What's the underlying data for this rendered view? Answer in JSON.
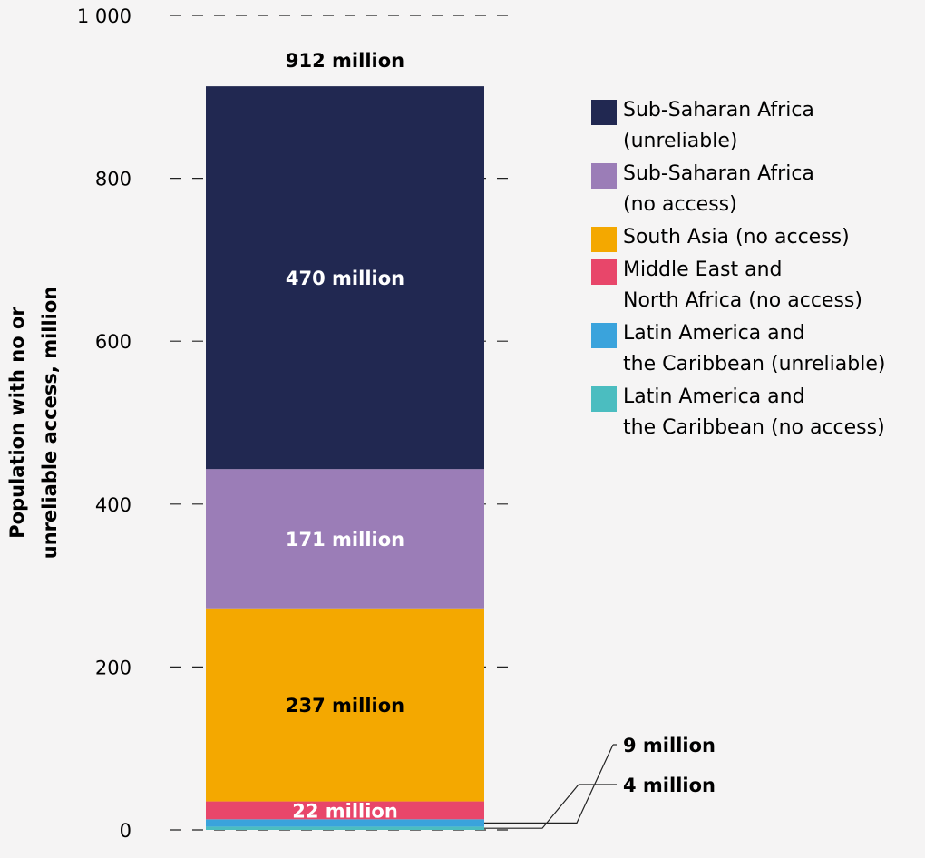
{
  "chart_data": {
    "type": "bar",
    "stacked": true,
    "ylabel": "Population with no or unreliable access, million",
    "ylim": [
      0,
      1000
    ],
    "yticks": [
      0,
      200,
      400,
      600,
      800,
      1000
    ],
    "ytick_labels": [
      "0",
      "200",
      "400",
      "600",
      "800",
      "1 000"
    ],
    "grid": "horizontal-dashed",
    "legend_placement": "right",
    "total_label": "912 million",
    "series": [
      {
        "name": "Latin America and the Caribbean (no access)",
        "value": 4,
        "color": "#4bbdc0",
        "label": "4 million",
        "label_mode": "callout"
      },
      {
        "name": "Latin America and the Caribbean (unreliable)",
        "value": 9,
        "color": "#3aa3dc",
        "label": "9 million",
        "label_mode": "callout"
      },
      {
        "name": "Middle East and North Africa (no access)",
        "value": 22,
        "color": "#e8466a",
        "label": "22 million",
        "label_mode": "inside",
        "label_color": "#ffffff"
      },
      {
        "name": "South Asia (no access)",
        "value": 237,
        "color": "#f4a800",
        "label": "237 million",
        "label_mode": "inside",
        "label_color": "#000000"
      },
      {
        "name": "Sub-Saharan Africa (no access)",
        "value": 171,
        "color": "#9b7db7",
        "label": "171 million",
        "label_mode": "inside",
        "label_color": "#ffffff"
      },
      {
        "name": "Sub-Saharan Africa (unreliable)",
        "value": 470,
        "color": "#212851",
        "label": "470 million",
        "label_mode": "inside",
        "label_color": "#ffffff"
      }
    ]
  },
  "legend": [
    {
      "line1": "Sub-Saharan Africa",
      "line2": "(unreliable)",
      "color": "#212851"
    },
    {
      "line1": "Sub-Saharan Africa",
      "line2": "(no access)",
      "color": "#9b7db7"
    },
    {
      "line1": "South Asia (no access)",
      "line2": "",
      "color": "#f4a800"
    },
    {
      "line1": "Middle East and",
      "line2": "North Africa (no access)",
      "color": "#e8466a"
    },
    {
      "line1": "Latin America and",
      "line2": "the Caribbean (unreliable)",
      "color": "#3aa3dc"
    },
    {
      "line1": "Latin America and",
      "line2": "the Caribbean (no access)",
      "color": "#4bbdc0"
    }
  ]
}
